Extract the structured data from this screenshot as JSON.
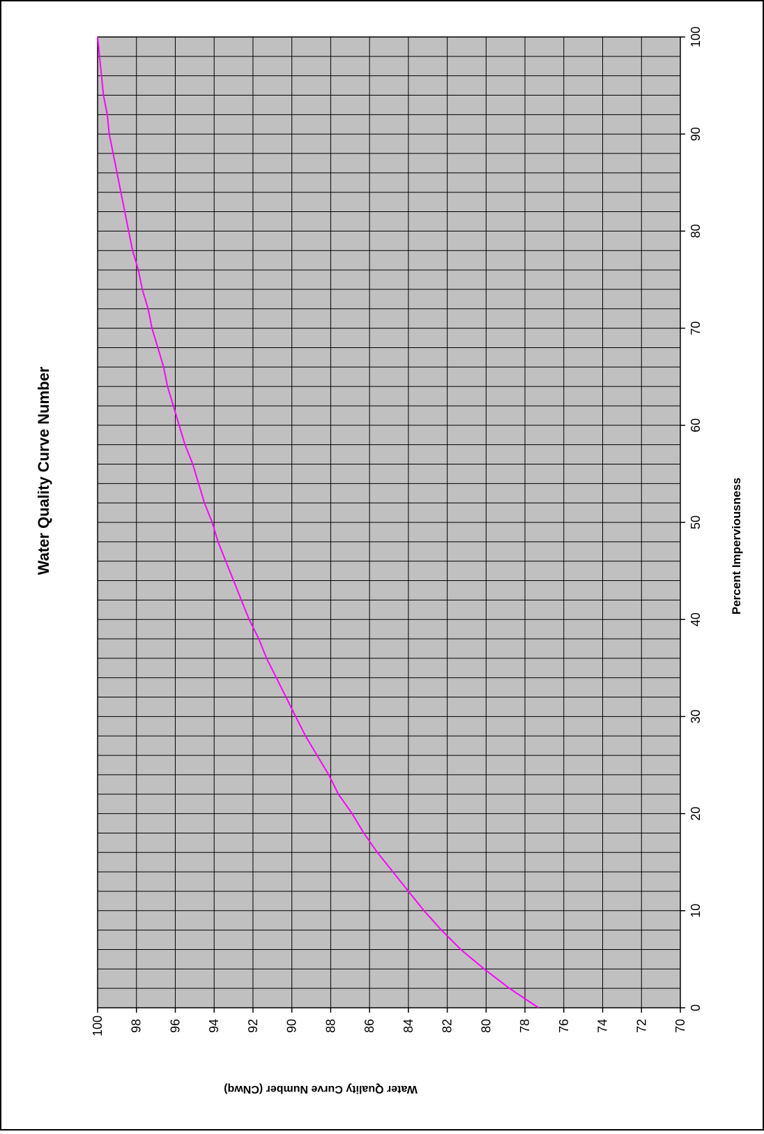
{
  "chart_data": {
    "type": "line",
    "title": "Water Quality Curve Number",
    "xlabel": "Percent Imperviousness",
    "ylabel": "Water Quality Curve Number (CNwq)",
    "xlim": [
      0,
      100
    ],
    "ylim": [
      70,
      100
    ],
    "x_ticks": [
      0,
      10,
      20,
      30,
      40,
      50,
      60,
      70,
      80,
      90,
      100
    ],
    "x_tick_labels": [
      "0",
      "10",
      "20",
      "30",
      "40",
      "50",
      "60",
      "70",
      "80",
      "90",
      "100"
    ],
    "y_ticks": [
      70,
      72,
      74,
      76,
      78,
      80,
      82,
      84,
      86,
      88,
      90,
      92,
      94,
      96,
      98,
      100
    ],
    "y_tick_labels": [
      "70",
      "72",
      "74",
      "76",
      "78",
      "80",
      "82",
      "84",
      "86",
      "88",
      "90",
      "92",
      "94",
      "96",
      "98",
      "100"
    ],
    "orientation": "rotated 90 degrees counter-clockwise",
    "grid": true,
    "minor_x_grid_step": 2,
    "plot_background": "#c0c0c0",
    "grid_color": "#000000",
    "series": [
      {
        "color": "#ff00ff",
        "x": [
          0,
          2,
          4,
          6,
          8,
          10,
          12,
          14,
          16,
          18,
          20,
          22,
          24,
          26,
          28,
          30,
          32,
          34,
          36,
          38,
          40,
          42,
          44,
          46,
          48,
          50,
          52,
          54,
          56,
          58,
          60,
          62,
          64,
          66,
          68,
          70,
          72,
          74,
          76,
          78,
          80,
          82,
          84,
          86,
          88,
          90,
          92,
          94,
          96,
          98,
          100
        ],
        "values": [
          77.3,
          78.8,
          80.1,
          81.3,
          82.3,
          83.2,
          84.0,
          84.8,
          85.6,
          86.3,
          86.9,
          87.6,
          88.1,
          88.7,
          89.3,
          89.8,
          90.3,
          90.8,
          91.3,
          91.7,
          92.2,
          92.6,
          93.0,
          93.4,
          93.8,
          94.1,
          94.5,
          94.8,
          95.1,
          95.5,
          95.8,
          96.1,
          96.4,
          96.6,
          96.9,
          97.2,
          97.4,
          97.7,
          97.9,
          98.2,
          98.4,
          98.6,
          98.8,
          99.0,
          99.2,
          99.4,
          99.5,
          99.7,
          99.8,
          99.9,
          100.0
        ]
      }
    ]
  }
}
